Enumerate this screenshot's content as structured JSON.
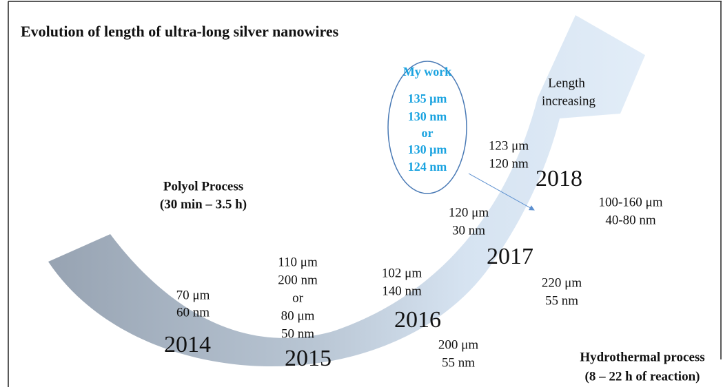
{
  "title": "Evolution of length of ultra-long silver nanowires",
  "my_work": [
    "My work",
    "135 μm",
    "130 nm",
    "or",
    "130 μm",
    "124 nm"
  ],
  "arrow_label": [
    "Length",
    "increasing"
  ],
  "polyol": [
    "Polyol Process",
    "(30 min – 3.5 h)"
  ],
  "hydrothermal": [
    "Hydrothermal process",
    "(8 – 22 h of reaction)"
  ],
  "years": [
    "2014",
    "2015",
    "2016",
    "2017",
    "2018"
  ],
  "annotations": [
    [
      "70 μm",
      "60 nm"
    ],
    [
      "110 μm",
      "200 nm",
      "or",
      "80 μm",
      "50 nm"
    ],
    [
      "102 μm",
      "140 nm"
    ],
    [
      "200 μm",
      "55 nm"
    ],
    [
      "120 μm",
      "30 nm"
    ],
    [
      "220 μm",
      "55 nm"
    ],
    [
      "123 μm",
      "120 nm"
    ],
    [
      "100-160 μm",
      "40-80 nm"
    ]
  ]
}
